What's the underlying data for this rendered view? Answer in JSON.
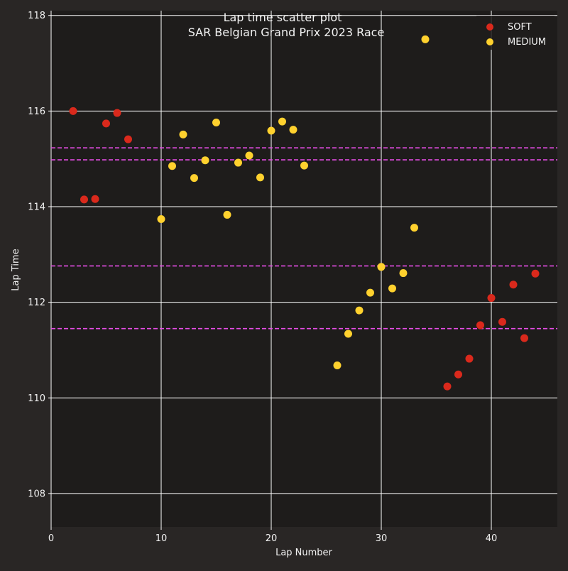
{
  "chart_data": {
    "type": "scatter",
    "title": "Lap time scatter plot",
    "subtitle": "SAR Belgian Grand Prix 2023 Race",
    "xlabel": "Lap Number",
    "ylabel": "Lap Time",
    "xlim": [
      0,
      46
    ],
    "ylim": [
      107.3,
      118.1
    ],
    "x_ticks": [
      0,
      10,
      20,
      30,
      40
    ],
    "y_ticks": [
      108,
      110,
      112,
      114,
      116,
      118
    ],
    "grid": true,
    "legend_position": "top-right",
    "series": [
      {
        "name": "SOFT",
        "color": "#da291c",
        "points": [
          {
            "x": 2,
            "y": 116.0
          },
          {
            "x": 3,
            "y": 114.15
          },
          {
            "x": 4,
            "y": 114.16
          },
          {
            "x": 5,
            "y": 115.74
          },
          {
            "x": 6,
            "y": 115.96
          },
          {
            "x": 7,
            "y": 115.41
          },
          {
            "x": 36,
            "y": 110.24
          },
          {
            "x": 37,
            "y": 110.49
          },
          {
            "x": 38,
            "y": 110.82
          },
          {
            "x": 39,
            "y": 111.52
          },
          {
            "x": 40,
            "y": 112.09
          },
          {
            "x": 41,
            "y": 111.59
          },
          {
            "x": 42,
            "y": 112.37
          },
          {
            "x": 43,
            "y": 111.25
          },
          {
            "x": 44,
            "y": 112.6
          }
        ]
      },
      {
        "name": "MEDIUM",
        "color": "#ffd12e",
        "points": [
          {
            "x": 10,
            "y": 113.74
          },
          {
            "x": 11,
            "y": 114.85
          },
          {
            "x": 12,
            "y": 115.51
          },
          {
            "x": 13,
            "y": 114.6
          },
          {
            "x": 14,
            "y": 114.97
          },
          {
            "x": 15,
            "y": 115.76
          },
          {
            "x": 16,
            "y": 113.83
          },
          {
            "x": 17,
            "y": 114.92
          },
          {
            "x": 18,
            "y": 115.07
          },
          {
            "x": 19,
            "y": 114.61
          },
          {
            "x": 20,
            "y": 115.59
          },
          {
            "x": 21,
            "y": 115.78
          },
          {
            "x": 22,
            "y": 115.61
          },
          {
            "x": 23,
            "y": 114.86
          },
          {
            "x": 26,
            "y": 110.68
          },
          {
            "x": 27,
            "y": 111.34
          },
          {
            "x": 28,
            "y": 111.83
          },
          {
            "x": 29,
            "y": 112.2
          },
          {
            "x": 30,
            "y": 112.74
          },
          {
            "x": 31,
            "y": 112.29
          },
          {
            "x": 32,
            "y": 112.61
          },
          {
            "x": 33,
            "y": 113.56
          },
          {
            "x": 34,
            "y": 117.5
          }
        ]
      }
    ],
    "reference_lines": {
      "color": "#e64de6",
      "y_values": [
        115.23,
        114.98,
        112.76,
        111.45
      ]
    }
  }
}
